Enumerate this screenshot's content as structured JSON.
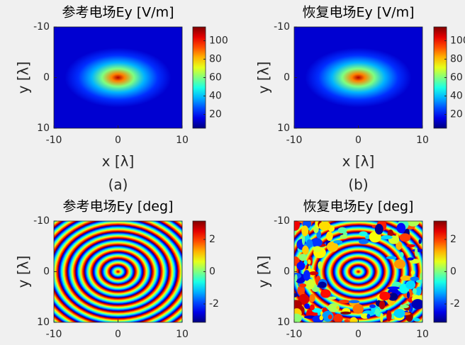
{
  "chart_data": [
    {
      "type": "heatmap",
      "title": "参考电场Ey [V/m]",
      "xlabel": "x [λ]",
      "ylabel": "y [λ]",
      "caption": "(a)",
      "xlim": [
        -10,
        10
      ],
      "ylim": [
        -10,
        10
      ],
      "y_reversed": true,
      "xticks": [
        -10,
        0,
        10
      ],
      "yticks": [
        -10,
        0,
        10
      ],
      "clim": [
        5,
        115
      ],
      "cticks": [
        20,
        40,
        60,
        80,
        100
      ],
      "colormap": "jet"
    },
    {
      "type": "heatmap",
      "title": "恢复电场Ey [V/m]",
      "xlabel": "x [λ]",
      "ylabel": "y [λ]",
      "caption": "(b)",
      "xlim": [
        -10,
        10
      ],
      "ylim": [
        -10,
        10
      ],
      "y_reversed": true,
      "xticks": [
        -10,
        0,
        10
      ],
      "yticks": [
        -10,
        0,
        10
      ],
      "clim": [
        5,
        115
      ],
      "cticks": [
        20,
        40,
        60,
        80,
        100
      ],
      "colormap": "jet"
    },
    {
      "type": "heatmap",
      "title": "参考电场Ey [deg]",
      "ylabel": "y [λ]",
      "xlim": [
        -10,
        10
      ],
      "ylim": [
        -10,
        10
      ],
      "y_reversed": true,
      "xticks": [
        -10,
        0,
        10
      ],
      "yticks": [
        -10,
        0,
        10
      ],
      "clim": [
        -3.14,
        3.14
      ],
      "cticks": [
        -2,
        0,
        2
      ],
      "colormap": "jet"
    },
    {
      "type": "heatmap",
      "title": "恢复电场Ey [deg]",
      "ylabel": "y [λ]",
      "xlim": [
        -10,
        10
      ],
      "ylim": [
        -10,
        10
      ],
      "y_reversed": true,
      "xticks": [
        -10,
        0,
        10
      ],
      "yticks": [
        -10,
        0,
        10
      ],
      "clim": [
        -3.14,
        3.14
      ],
      "cticks": [
        -2,
        0,
        2
      ],
      "colormap": "jet"
    }
  ]
}
